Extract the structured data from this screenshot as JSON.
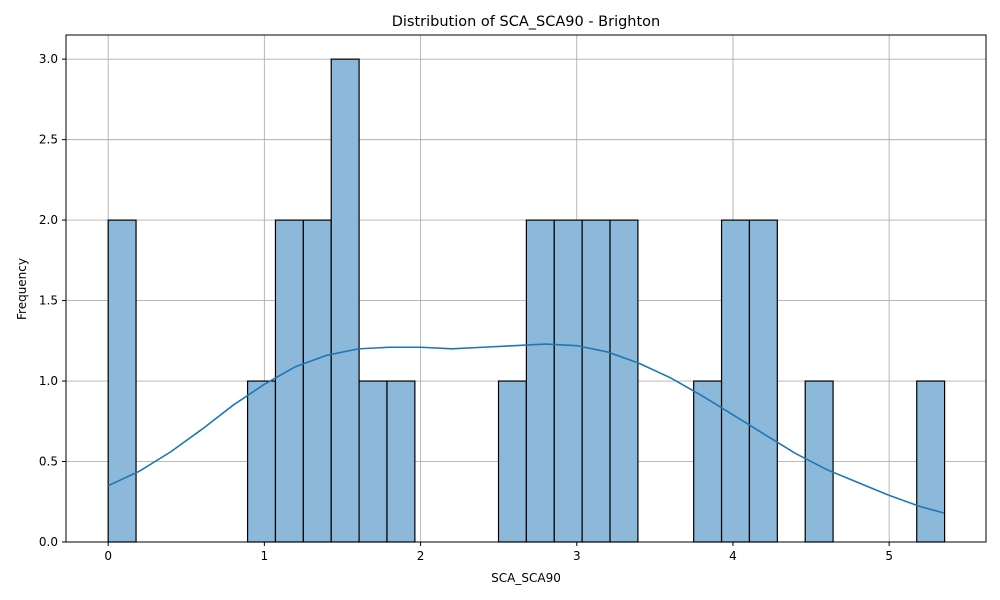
{
  "chart_data": {
    "type": "bar",
    "title": "Distribution of SCA_SCA90 - Brighton",
    "xlabel": "SCA_SCA90",
    "ylabel": "Frequency",
    "xlim": [
      -0.27,
      5.62
    ],
    "ylim": [
      0,
      3.15
    ],
    "xticks": [
      0,
      1,
      2,
      3,
      4,
      5
    ],
    "yticks": [
      0.0,
      0.5,
      1.0,
      1.5,
      2.0,
      2.5,
      3.0
    ],
    "grid": true,
    "bins": {
      "start": 0.0,
      "width": 0.1785,
      "counts": [
        2,
        0,
        0,
        0,
        0,
        1,
        2,
        2,
        3,
        1,
        1,
        0,
        0,
        0,
        1,
        2,
        2,
        2,
        2,
        0,
        0,
        1,
        2,
        2,
        0,
        1,
        0,
        0,
        0,
        1
      ]
    },
    "kde": {
      "x": [
        0.0,
        0.2,
        0.4,
        0.6,
        0.8,
        1.0,
        1.2,
        1.4,
        1.6,
        1.8,
        2.0,
        2.2,
        2.4,
        2.6,
        2.8,
        3.0,
        3.2,
        3.4,
        3.6,
        3.8,
        4.0,
        4.2,
        4.4,
        4.6,
        4.8,
        5.0,
        5.2,
        5.35
      ],
      "y": [
        0.35,
        0.44,
        0.56,
        0.7,
        0.85,
        0.98,
        1.09,
        1.16,
        1.2,
        1.21,
        1.21,
        1.2,
        1.21,
        1.22,
        1.23,
        1.22,
        1.18,
        1.11,
        1.02,
        0.91,
        0.79,
        0.67,
        0.55,
        0.45,
        0.37,
        0.29,
        0.22,
        0.18
      ]
    }
  }
}
